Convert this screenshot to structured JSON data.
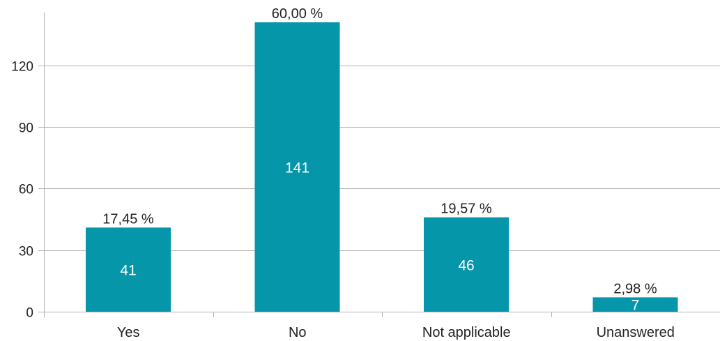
{
  "chart_data": {
    "type": "bar",
    "categories": [
      "Yes",
      "No",
      "Not applicable",
      "Unanswered"
    ],
    "values": [
      41,
      141,
      46,
      7
    ],
    "percent_labels": [
      "17,45 %",
      "60,00 %",
      "19,57 %",
      "2,98 %"
    ],
    "value_labels": [
      "41",
      "141",
      "46",
      "7"
    ],
    "yticks": [
      0,
      30,
      60,
      90,
      120
    ],
    "ytick_labels": [
      "0",
      "30",
      "60",
      "90",
      "120"
    ],
    "ylim": [
      0,
      141
    ],
    "grid": true,
    "legend": "none",
    "title": "",
    "xlabel": "",
    "ylabel": "",
    "colors": {
      "bar": "#0596aa",
      "grid": "#b3b3b3",
      "axis": "#b3b3b3"
    }
  }
}
